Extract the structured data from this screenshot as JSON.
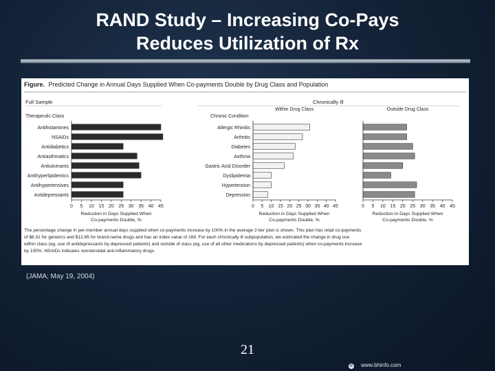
{
  "slide": {
    "title_line1": "RAND Study – Increasing Co-Pays",
    "title_line2": "Reduces Utilization of Rx",
    "citation": "(JAMA; May 19, 2004)",
    "page_number": "21",
    "footer_url": "www.bhinfo.com",
    "copyright_symbol": "©"
  },
  "figure": {
    "label": "Figure.",
    "caption_title": "Predicted Change in Annual Days Supplied When Co-payments Double by Drug Class and Population",
    "full_sample_header": "Full Sample",
    "chronic_header": "Chronically Ill",
    "footnote_lines": [
      "The percentage change in per-member annual days supplied when co-payments increase by 100% in the average 2-tier plan is shown. This plan has retail co-payments",
      "of $6.31 for generics and $12.85 for brand-name drugs and has an index value of 169. For each chronically ill subpopulation, we estimated the change in drug use",
      "within class (eg, use of antidepressants by depressed patients) and outside of class (eg, use of all other medications by depressed patients) when co-payments increase",
      "by 100%. NSAIDs indicates nonsteroidal anti-inflammatory drugs."
    ]
  },
  "colors": {
    "background": "#142338",
    "bar_dark": "#2b2b2b",
    "bar_light": "#f2f2f2",
    "bar_outside": "#8a8a8a"
  },
  "chart_data": [
    {
      "type": "bar",
      "orientation": "horizontal",
      "panel": "full-sample",
      "category_header": "Therapeutic Class",
      "categories": [
        "Antihistamines",
        "NSAIDs",
        "Antidiabetics",
        "Antiasthmatics",
        "Antiulcerants",
        "Antihyperlipidemics",
        "Antihypertensives",
        "Antidepressants"
      ],
      "values": [
        45,
        46,
        26,
        33,
        34,
        35,
        26,
        26
      ],
      "xlabel": "Reduction in Days Supplied When Co-payments Double, %",
      "xlim": [
        0,
        45
      ],
      "xticks": [
        0,
        5,
        10,
        15,
        20,
        25,
        30,
        35,
        40,
        45
      ],
      "color": "#2b2b2b"
    },
    {
      "type": "bar",
      "orientation": "horizontal",
      "panel": "within-drug-class",
      "category_header": "Chronic Condition",
      "subtitle": "Within Drug Class",
      "categories": [
        "Allergic Rhinitis",
        "Arthritis",
        "Diabetes",
        "Asthma",
        "Gastric Acid Disorder",
        "Dyslipidemia",
        "Hypertension",
        "Depression"
      ],
      "values": [
        31,
        27,
        23,
        22,
        17,
        10,
        10,
        8
      ],
      "xlabel": "Reduction in Days Supplied When Co-payments Double, %",
      "xlim": [
        0,
        45
      ],
      "xticks": [
        0,
        5,
        10,
        15,
        20,
        25,
        30,
        35,
        40,
        45
      ],
      "color": "#f2f2f2"
    },
    {
      "type": "bar",
      "orientation": "horizontal",
      "panel": "outside-drug-class",
      "subtitle": "Outside Drug Class",
      "categories": [
        "Allergic Rhinitis",
        "Arthritis",
        "Diabetes",
        "Asthma",
        "Gastric Acid Disorder",
        "Dyslipidemia",
        "Hypertension",
        "Depression"
      ],
      "values": [
        22,
        22,
        25,
        26,
        20,
        14,
        27,
        26
      ],
      "xlabel": "Reduction in Days Supplied When Co-payments Double, %",
      "xlim": [
        0,
        45
      ],
      "xticks": [
        0,
        5,
        10,
        15,
        20,
        25,
        30,
        35,
        40,
        45
      ],
      "color": "#8a8a8a"
    }
  ]
}
